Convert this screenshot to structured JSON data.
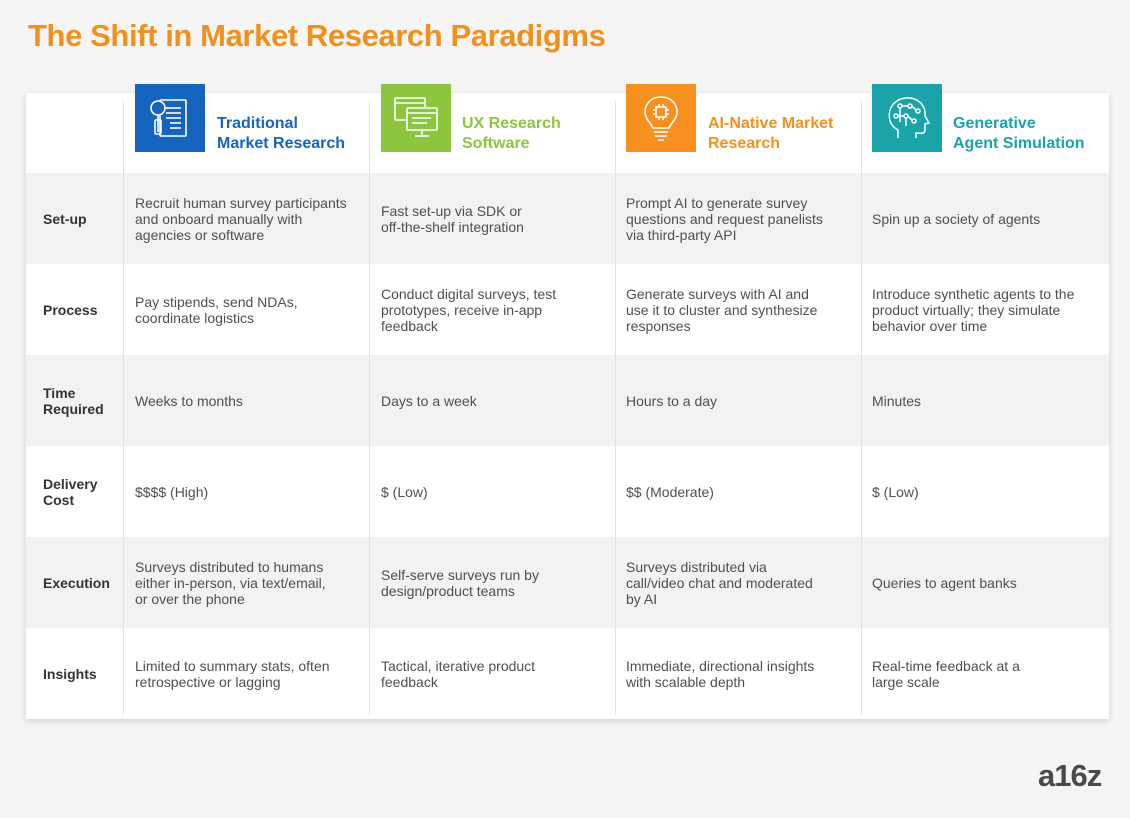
{
  "title": "The Shift in Market Research Paradigms",
  "logo_text": "a16z",
  "colors": {
    "title": "#f0901e",
    "traditional": "#1565c0",
    "ux": "#8cc63f",
    "ai_native": "#f7901e",
    "generative": "#1aa3a8"
  },
  "columns": [
    {
      "title_line1": "Traditional",
      "title_line2": "Market Research",
      "icon": "document-inspection-icon",
      "color": "#1565c0"
    },
    {
      "title_line1": "UX Research",
      "title_line2": "Software",
      "icon": "computer-screens-icon",
      "color": "#8cc63f"
    },
    {
      "title_line1": "AI-Native Market",
      "title_line2": "Research",
      "icon": "lightbulb-circuit-icon",
      "color": "#f7901e"
    },
    {
      "title_line1": "Generative",
      "title_line2": "Agent Simulation",
      "icon": "head-circuit-icon",
      "color": "#1aa3a8"
    }
  ],
  "rows": [
    {
      "label": [
        "Set-up"
      ],
      "cells": [
        [
          "Recruit human survey participants",
          "and onboard manually with",
          "agencies or software"
        ],
        [
          "Fast set-up via SDK or",
          "off-the-shelf integration"
        ],
        [
          "Prompt AI to generate survey",
          "questions and request panelists",
          "via third-party API"
        ],
        [
          "Spin up a society of agents"
        ]
      ]
    },
    {
      "label": [
        "Process"
      ],
      "cells": [
        [
          "Pay stipends, send NDAs,",
          "coordinate logistics"
        ],
        [
          "Conduct digital surveys, test",
          "prototypes, receive in-app",
          "feedback"
        ],
        [
          "Generate surveys with AI and",
          "use it to cluster and synthesize",
          "responses"
        ],
        [
          "Introduce synthetic agents to the",
          "product virtually; they simulate",
          "behavior over time"
        ]
      ]
    },
    {
      "label": [
        "Time",
        "Required"
      ],
      "cells": [
        [
          "Weeks to months"
        ],
        [
          "Days to a week"
        ],
        [
          "Hours to a day"
        ],
        [
          "Minutes"
        ]
      ]
    },
    {
      "label": [
        "Delivery",
        "Cost"
      ],
      "cells": [
        [
          "$$$$ (High)"
        ],
        [
          "$ (Low)"
        ],
        [
          "$$ (Moderate)"
        ],
        [
          "$ (Low)"
        ]
      ]
    },
    {
      "label": [
        "Execution"
      ],
      "cells": [
        [
          "Surveys distributed to humans",
          "either in-person, via text/email,",
          "or over the phone"
        ],
        [
          "Self-serve surveys run by",
          "design/product teams"
        ],
        [
          "Surveys distributed via",
          "call/video chat and moderated",
          "by AI"
        ],
        [
          "Queries to agent banks"
        ]
      ]
    },
    {
      "label": [
        "Insights"
      ],
      "cells": [
        [
          "Limited to summary stats, often",
          "retrospective or lagging"
        ],
        [
          "Tactical, iterative product",
          "feedback"
        ],
        [
          "Immediate, directional insights",
          "with scalable depth"
        ],
        [
          "Real-time feedback at a",
          "large scale"
        ]
      ]
    }
  ]
}
